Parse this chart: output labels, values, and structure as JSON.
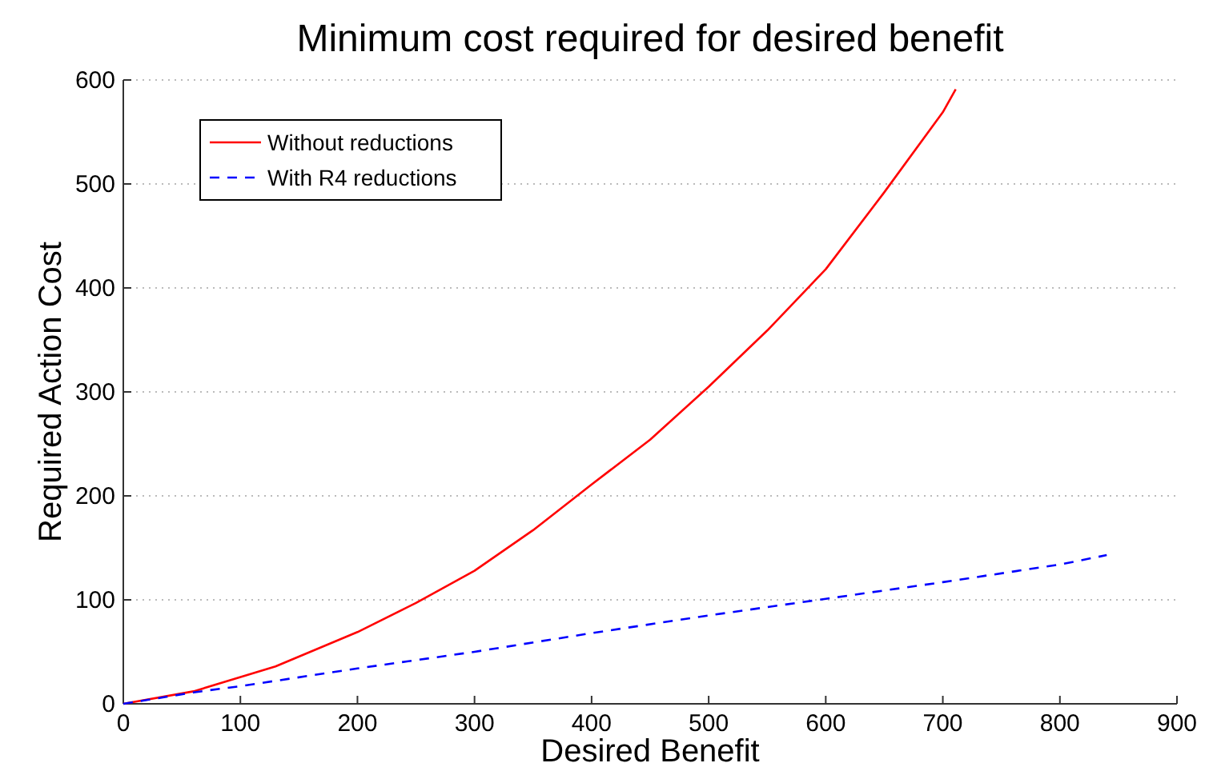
{
  "chart_data": {
    "type": "line",
    "title": "Minimum cost required for desired benefit",
    "xlabel": "Desired Benefit",
    "ylabel": "Required Action Cost",
    "xlim": [
      0,
      900
    ],
    "xticks": [
      0,
      100,
      200,
      300,
      400,
      500,
      600,
      700,
      800,
      900
    ],
    "ylim": [
      0,
      600
    ],
    "yticks": [
      0,
      100,
      200,
      300,
      400,
      500,
      600
    ],
    "grid": "y",
    "legend": "top left",
    "series": [
      {
        "name": "Without reductions",
        "color": "#ff0000",
        "line_style": "solid",
        "x": [
          0,
          60,
          130,
          200,
          250,
          300,
          350,
          400,
          450,
          500,
          550,
          600,
          650,
          700,
          711
        ],
        "values": [
          0,
          12,
          36,
          69,
          97,
          128,
          167,
          211,
          254,
          305,
          359,
          418,
          492,
          569,
          591
        ]
      },
      {
        "name": "With R4 reductions",
        "color": "#0000ff",
        "line_style": "dashed",
        "x": [
          0,
          60,
          100,
          200,
          300,
          400,
          500,
          600,
          700,
          800,
          840
        ],
        "values": [
          0,
          11,
          17,
          34,
          50,
          68,
          85,
          101,
          117,
          134,
          143
        ]
      }
    ]
  }
}
